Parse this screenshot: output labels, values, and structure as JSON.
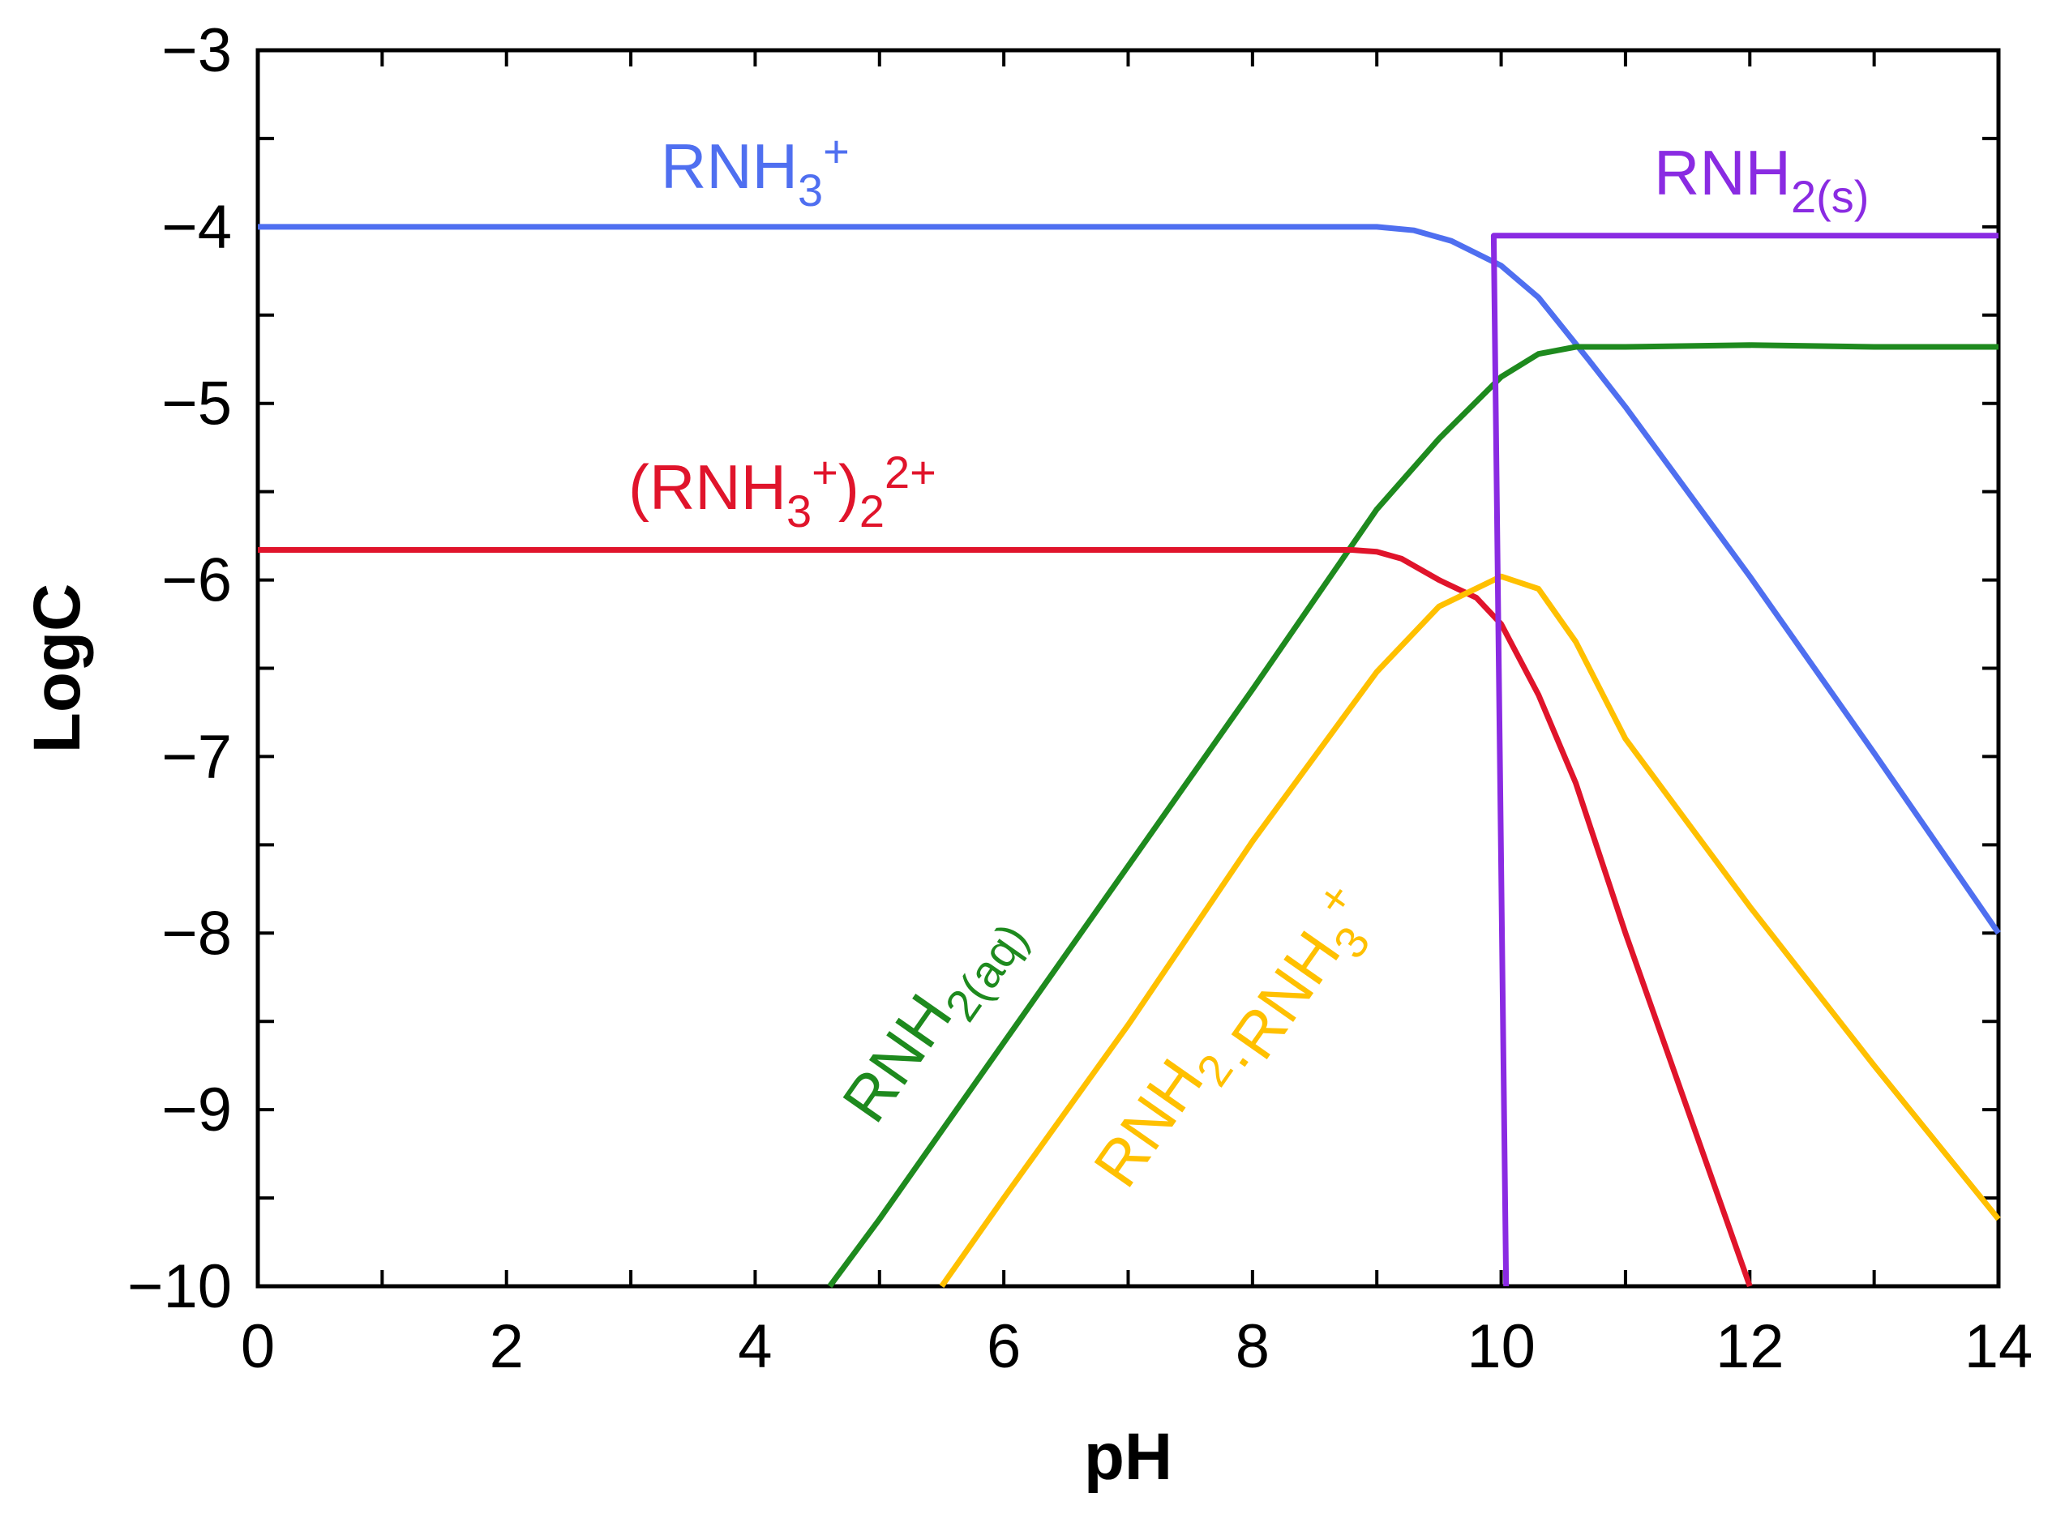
{
  "chart_data": {
    "type": "line",
    "title": "",
    "xlabel": "pH",
    "ylabel": "LogC",
    "xlim": [
      0,
      14
    ],
    "ylim": [
      -10,
      -3
    ],
    "xticks": [
      0,
      2,
      4,
      6,
      8,
      10,
      12,
      14
    ],
    "xtick_labels": [
      "0",
      "2",
      "4",
      "6",
      "8",
      "10",
      "12",
      "14"
    ],
    "yticks": [
      -10,
      -9,
      -8,
      -7,
      -6,
      -5,
      -4,
      -3
    ],
    "ytick_labels": [
      "−10",
      "−9",
      "−8",
      "−7",
      "−6",
      "−5",
      "−4",
      "−3"
    ],
    "grid": false,
    "series": [
      {
        "name": "RNH3+",
        "label_main": "RNH",
        "label_sub": "3",
        "label_sup": "+",
        "color": "#4F6FF0",
        "x": [
          0,
          8.5,
          9.0,
          9.3,
          9.6,
          10.0,
          10.3,
          10.7,
          11.0,
          11.5,
          12.0,
          13.0,
          14.0
        ],
        "y": [
          -4.0,
          -4.0,
          -4.0,
          -4.02,
          -4.08,
          -4.22,
          -4.4,
          -4.75,
          -5.02,
          -5.5,
          -5.98,
          -6.98,
          -8.0
        ]
      },
      {
        "name": "RNH2(aq)",
        "label_main": "RNH",
        "label_sub": "2(aq)",
        "color": "#1E8A1E",
        "x": [
          4.6,
          5.0,
          6.0,
          7.0,
          8.0,
          9.0,
          9.5,
          10.0,
          10.3,
          10.6,
          11.0,
          12.0,
          13.0,
          14.0
        ],
        "y": [
          -10.0,
          -9.62,
          -8.62,
          -7.62,
          -6.62,
          -5.6,
          -5.2,
          -4.85,
          -4.72,
          -4.68,
          -4.68,
          -4.67,
          -4.68,
          -4.68
        ]
      },
      {
        "name": "(RNH3+)2 2+",
        "label_main": "(RNH",
        "label_sub": "3",
        "label_sup": "+",
        "label_close": ")",
        "label_sub2": "2",
        "label_sup2": "2+",
        "color": "#E0142B",
        "x": [
          0,
          8.8,
          9.0,
          9.2,
          9.5,
          9.8,
          10.0,
          10.3,
          10.6,
          11.0,
          11.5,
          12.0
        ],
        "y": [
          -5.83,
          -5.83,
          -5.84,
          -5.88,
          -6.0,
          -6.1,
          -6.25,
          -6.65,
          -7.15,
          -8.0,
          -9.0,
          -10.0
        ]
      },
      {
        "name": "RNH2·RNH3+",
        "label_main": "RNH",
        "label_sub": "2",
        "label_mid": "·RNH",
        "label_sub2": "3",
        "label_sup": "+",
        "color": "#FFC000",
        "x": [
          5.5,
          6.0,
          7.0,
          8.0,
          8.5,
          9.0,
          9.5,
          10.0,
          10.3,
          10.6,
          11.0,
          12.0,
          13.0,
          14.0
        ],
        "y": [
          -10.0,
          -9.5,
          -8.52,
          -7.48,
          -7.0,
          -6.52,
          -6.15,
          -5.98,
          -6.05,
          -6.35,
          -6.9,
          -7.85,
          -8.75,
          -9.62
        ]
      },
      {
        "name": "RNH2(s)",
        "label_main": "RNH",
        "label_sub": "2(s)",
        "color": "#8A2BE2",
        "x": [
          10.04,
          9.94,
          9.94,
          14.0
        ],
        "y": [
          -10.0,
          -4.05,
          -4.05,
          -4.05
        ]
      }
    ]
  }
}
